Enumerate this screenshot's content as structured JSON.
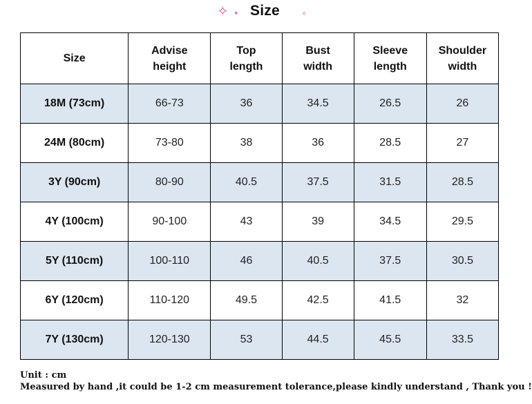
{
  "title": "Size",
  "icons": {
    "decoration": "sparkle-icon",
    "sparkle_color": "#e05a98"
  },
  "colors": {
    "shaded_row": "#dce6f0",
    "border": "#000000"
  },
  "table": {
    "headers": [
      {
        "line1": "Size",
        "line2": ""
      },
      {
        "line1": "Advise",
        "line2": "height"
      },
      {
        "line1": "Top",
        "line2": "length"
      },
      {
        "line1": "Bust",
        "line2": "width"
      },
      {
        "line1": "Sleeve",
        "line2": "length"
      },
      {
        "line1": "Shoulder",
        "line2": "width"
      }
    ],
    "rows": [
      [
        "18M (73cm)",
        "66-73",
        "36",
        "34.5",
        "26.5",
        "26"
      ],
      [
        "24M (80cm)",
        "73-80",
        "38",
        "36",
        "28.5",
        "27"
      ],
      [
        "3Y (90cm)",
        "80-90",
        "40.5",
        "37.5",
        "31.5",
        "28.5"
      ],
      [
        "4Y (100cm)",
        "90-100",
        "43",
        "39",
        "34.5",
        "29.5"
      ],
      [
        "5Y (110cm)",
        "100-110",
        "46",
        "40.5",
        "37.5",
        "30.5"
      ],
      [
        "6Y (120cm)",
        "110-120",
        "49.5",
        "42.5",
        "41.5",
        "32"
      ],
      [
        "7Y (130cm)",
        "120-130",
        "53",
        "44.5",
        "45.5",
        "33.5"
      ]
    ]
  },
  "notes": {
    "unit": "Unit : cm",
    "tolerance": "Measured by hand ,it could be 1-2 cm measurement tolerance,please kindly understand , Thank you !"
  }
}
